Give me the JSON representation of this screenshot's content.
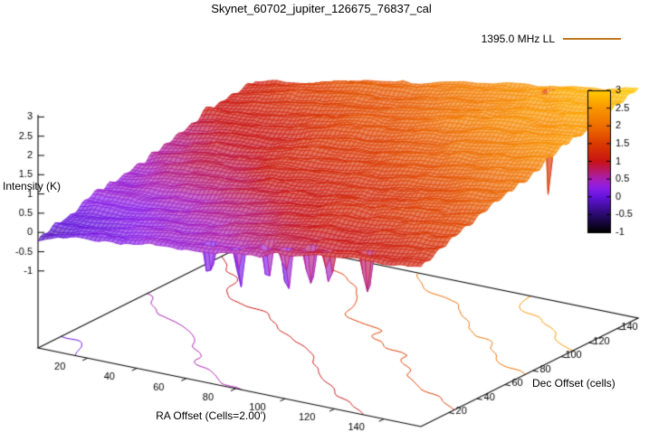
{
  "title": "Skynet_60702_jupiter_126675_76837_cal",
  "legend": {
    "label": "1395.0 MHz LL",
    "sample_color": "#c07820",
    "position": "top-right"
  },
  "chart_data": {
    "type": "heatmap",
    "subtype": "gnuplot-3d-surface-with-palette-and-base-contours",
    "title": "Skynet_60702_jupiter_126675_76837_cal",
    "series": [
      {
        "name": "1395.0 MHz LL"
      }
    ],
    "xlabel": "RA Offset (Cells=2.00')",
    "ylabel": "Dec Offset (cells)",
    "zlabel": "Intensity (K)",
    "x_range": [
      0,
      155
    ],
    "y_range": [
      0,
      155
    ],
    "z_range": [
      -1,
      3
    ],
    "x_ticks": [
      20,
      40,
      60,
      80,
      100,
      120,
      140
    ],
    "y_ticks": [
      20,
      40,
      60,
      80,
      100,
      120,
      140
    ],
    "z_ticks": [
      -1,
      -0.5,
      0,
      0.5,
      1,
      1.5,
      2,
      2.5,
      3
    ],
    "grid": false,
    "layout": {
      "legend_position": "top-right",
      "colorbar_position": "right"
    },
    "colorbar": {
      "min": -1,
      "max": 3,
      "ticks": [
        3,
        2.5,
        2,
        1.5,
        1,
        0.5,
        0,
        -0.5,
        -1
      ],
      "palette_stops": [
        [
          0,
          "#000000"
        ],
        [
          0.125,
          "#2a0a6e"
        ],
        [
          0.25,
          "#6414dc"
        ],
        [
          0.315,
          "#8c1ee6"
        ],
        [
          0.375,
          "#aa1eb4"
        ],
        [
          0.5,
          "#c81414"
        ],
        [
          0.625,
          "#dc3c00"
        ],
        [
          0.75,
          "#ee6e00"
        ],
        [
          0.875,
          "#fa9600"
        ],
        [
          1,
          "#ffcc00"
        ]
      ]
    },
    "contour_levels": [
      0,
      0.5,
      1,
      1.5,
      2,
      2.5
    ],
    "surface_model": {
      "description": "intensity ramps from ~-0.15 K at low RA/Dec offsets (purple/black) to ~3 K at high RA/Dec offsets (orange/yellow), with small-scale scan ripples and narrow negative spikes near the front edge",
      "corner_values_K": {
        "x0_y0": -0.15,
        "x155_y0": 1.2,
        "x0_y155": 1.2,
        "x155_y155": 3.0
      },
      "noise_amp_K": 0.13,
      "ripple_amp_K": 0.045,
      "negative_spikes": [
        {
          "x": 66,
          "y": 6,
          "depth": 0.95
        },
        {
          "x": 79,
          "y": 5,
          "depth": 1.05
        },
        {
          "x": 89,
          "y": 7,
          "depth": 0.9
        },
        {
          "x": 98,
          "y": 5,
          "depth": 1.15
        },
        {
          "x": 107,
          "y": 6,
          "depth": 1.0
        },
        {
          "x": 115,
          "y": 5,
          "depth": 0.85
        },
        {
          "x": 130,
          "y": 6,
          "depth": 1.1
        },
        {
          "x": 122,
          "y": 150,
          "depth": 2.9
        }
      ],
      "base_plane_z": -3
    }
  }
}
